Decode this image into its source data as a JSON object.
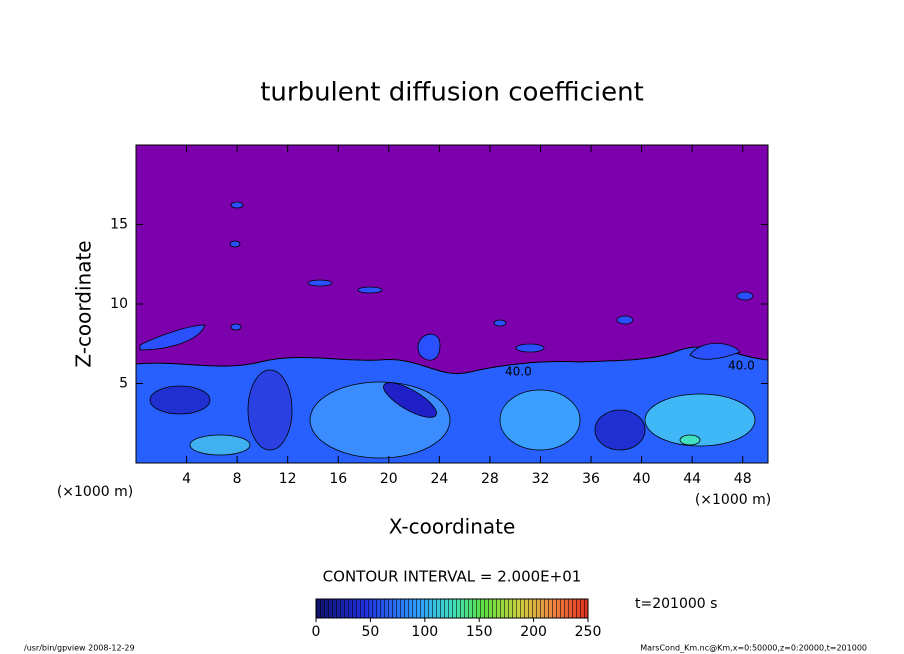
{
  "chart_data": {
    "type": "contour",
    "title": "turbulent diffusion coefficient",
    "x_label": "X-coordinate",
    "y_label": "Z-coordinate",
    "x_unit_label": "(×1000 m)",
    "xlim": [
      0,
      50
    ],
    "xticks": [
      4,
      8,
      12,
      16,
      20,
      24,
      28,
      32,
      36,
      40,
      44,
      48
    ],
    "ylim": [
      0,
      20
    ],
    "yticks": [
      5,
      10,
      15
    ],
    "contour_labels": [
      "40.0",
      "40.0"
    ],
    "contour_interval": "CONTOUR INTERVAL = 2.000E+01",
    "time_label": "t=201000 s",
    "colorbar": {
      "lim": [
        0,
        250
      ],
      "ticks": [
        0,
        50,
        100,
        150,
        200,
        250
      ]
    },
    "footer_left": "/usr/bin/gpview   2008-12-29",
    "footer_right": "MarsCond_Km.nc@Km,x=0:50000,z=0:20000,t=201000"
  }
}
